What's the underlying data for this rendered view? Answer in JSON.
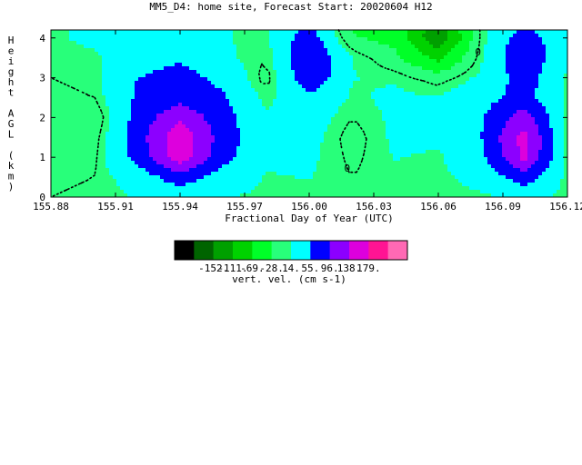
{
  "chart_data": {
    "type": "heatmap",
    "title": "MM5_D4: home site,  Forecast Start: 20020604 H12",
    "xlabel": "Fractional Day of Year (UTC)",
    "ylabel": "Height AGL (km)",
    "xlim": [
      155.88,
      156.12
    ],
    "ylim": [
      0,
      4.2
    ],
    "x_ticks": [
      "155.88",
      "155.91",
      "155.94",
      "155.97",
      "156.00",
      "156.03",
      "156.06",
      "156.09",
      "156.12"
    ],
    "y_ticks": [
      "0",
      "1",
      "2",
      "3",
      "4"
    ],
    "colorbar": {
      "label": "vert. vel. (cm s-1)",
      "levels": [
        "-152.",
        "-111.",
        "-69.",
        "-28.",
        "14.",
        "55.",
        "96.",
        "138.",
        "179."
      ],
      "colors": [
        "#000000",
        "#006400",
        "#00a000",
        "#00d200",
        "#00ff28",
        "#28ff7a",
        "#00ffff",
        "#0000ff",
        "#8c00ff",
        "#dd00dd",
        "#ff1493",
        "#ff69b4"
      ]
    },
    "contour_label": "0",
    "contour_x": [
      155.88,
      155.9,
      155.92,
      155.94,
      155.96,
      155.98,
      156.0,
      156.02,
      156.04,
      156.06,
      156.08,
      156.1,
      156.12
    ],
    "contour_y": [
      0,
      0.5,
      1.0,
      1.5,
      2.0,
      2.5,
      3.0,
      3.5,
      4.0,
      4.2
    ],
    "values": [
      [
        0,
        5,
        15,
        20,
        15,
        10,
        5,
        5,
        8,
        5,
        10,
        20,
        8
      ],
      [
        -5,
        0,
        30,
        80,
        35,
        12,
        15,
        0,
        10,
        8,
        25,
        80,
        5
      ],
      [
        -10,
        -5,
        70,
        160,
        70,
        20,
        20,
        -5,
        15,
        10,
        45,
        150,
        0
      ],
      [
        -15,
        -10,
        75,
        170,
        75,
        25,
        25,
        -10,
        20,
        20,
        55,
        155,
        0
      ],
      [
        -10,
        -20,
        70,
        130,
        70,
        20,
        30,
        0,
        20,
        25,
        50,
        120,
        5
      ],
      [
        -5,
        0,
        60,
        80,
        60,
        5,
        45,
        10,
        20,
        15,
        40,
        70,
        10
      ],
      [
        0,
        5,
        55,
        70,
        45,
        -10,
        90,
        15,
        10,
        -10,
        20,
        75,
        10
      ],
      [
        5,
        10,
        35,
        50,
        20,
        0,
        100,
        15,
        -20,
        -80,
        10,
        95,
        15
      ],
      [
        10,
        20,
        25,
        30,
        15,
        10,
        80,
        -25,
        -40,
        -150,
        5,
        80,
        20
      ],
      [
        10,
        20,
        25,
        30,
        15,
        10,
        65,
        -30,
        -45,
        -140,
        5,
        60,
        20
      ]
    ]
  }
}
